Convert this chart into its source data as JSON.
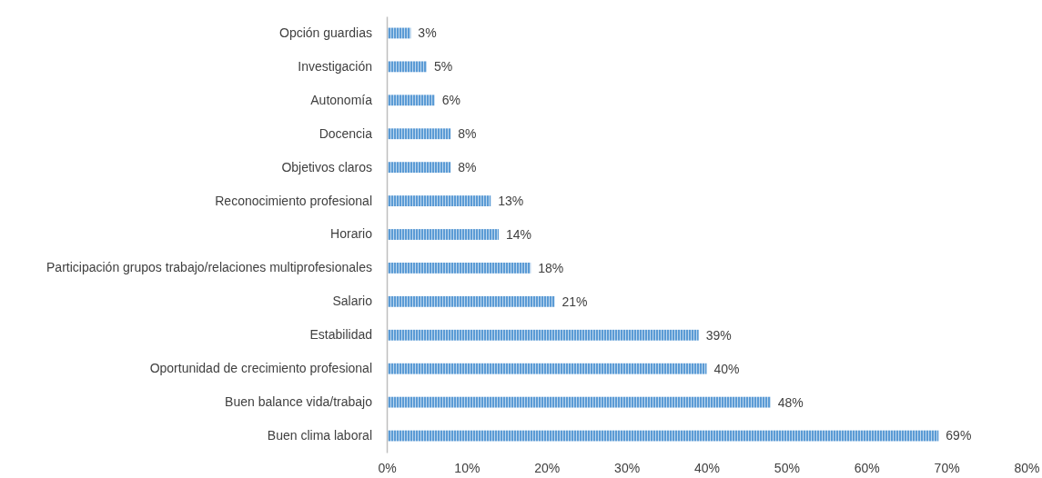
{
  "chart_data": {
    "type": "bar",
    "orientation": "horizontal",
    "categories": [
      "Opción guardias",
      "Investigación",
      "Autonomía",
      "Docencia",
      "Objetivos claros",
      "Reconocimiento profesional",
      "Horario",
      "Participación grupos trabajo/relaciones multiprofesionales",
      "Salario",
      "Estabilidad",
      "Oportunidad de crecimiento profesional",
      "Buen balance vida/trabajo",
      "Buen clima laboral"
    ],
    "values": [
      3,
      5,
      6,
      8,
      8,
      13,
      14,
      18,
      21,
      39,
      40,
      48,
      69
    ],
    "value_labels": [
      "3%",
      "5%",
      "6%",
      "8%",
      "8%",
      "13%",
      "14%",
      "18%",
      "21%",
      "39%",
      "40%",
      "48%",
      "69%"
    ],
    "color": "#5b9bd5",
    "xlim": [
      0,
      80
    ],
    "xticks": [
      {
        "value": 0,
        "label": "0%"
      },
      {
        "value": 10,
        "label": "10%"
      },
      {
        "value": 20,
        "label": "20%"
      },
      {
        "value": 30,
        "label": "30%"
      },
      {
        "value": 40,
        "label": "40%"
      },
      {
        "value": 50,
        "label": "50%"
      },
      {
        "value": 60,
        "label": "60%"
      },
      {
        "value": 70,
        "label": "70%"
      },
      {
        "value": 80,
        "label": "80%"
      }
    ]
  }
}
